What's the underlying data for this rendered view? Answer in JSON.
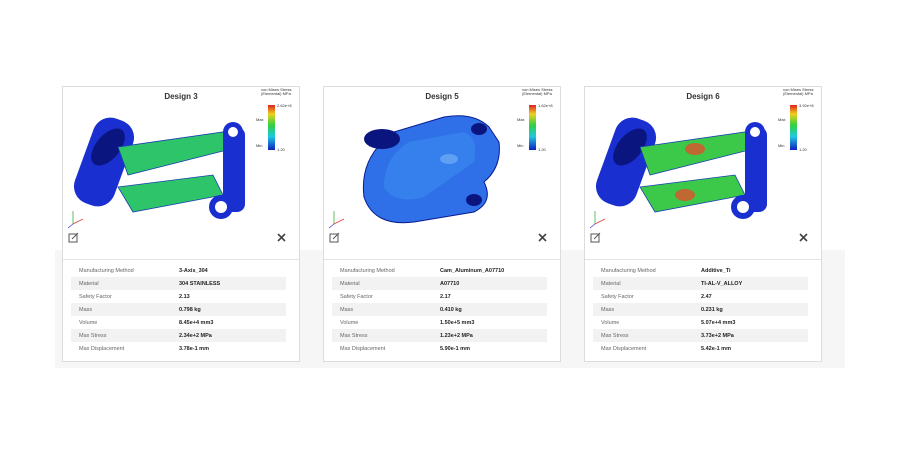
{
  "cards": [
    {
      "title": "Design 3",
      "legend": {
        "title": "von Mises Stress (Elemental) MPa",
        "max": "2.62e+8",
        "min": "1.20",
        "max_marker": "Max",
        "min_marker": "Min"
      },
      "rows": [
        [
          "Manufacturing Method",
          "3-Axis_304"
        ],
        [
          "Material",
          "304 STAINLESS"
        ],
        [
          "Safety Factor",
          "2.13"
        ],
        [
          "Mass",
          "0.798 kg"
        ],
        [
          "Volume",
          "8.45e+4 mm3"
        ],
        [
          "Max Stress",
          "2.34e+2 MPa"
        ],
        [
          "Max Displacement",
          "3.78e-1 mm"
        ]
      ]
    },
    {
      "title": "Design 5",
      "legend": {
        "title": "von Mises Stress (Elemental) MPa",
        "max": "1.62e+8",
        "min": "1.20",
        "max_marker": "Max",
        "min_marker": "Min"
      },
      "rows": [
        [
          "Manufacturing Method",
          "Cam_Aluminum_A07710"
        ],
        [
          "Material",
          "A07710"
        ],
        [
          "Safety Factor",
          "2.17"
        ],
        [
          "Mass",
          "0.410 kg"
        ],
        [
          "Volume",
          "1.50e+5 mm3"
        ],
        [
          "Max Stress",
          "1.23e+2 MPa"
        ],
        [
          "Max Displacement",
          "5.90e-1 mm"
        ]
      ]
    },
    {
      "title": "Design 6",
      "legend": {
        "title": "von Mises Stress (Elemental) MPa",
        "max": "3.92e+8",
        "min": "1.20",
        "max_marker": "Max",
        "min_marker": "Min"
      },
      "rows": [
        [
          "Manufacturing Method",
          "Additive_Ti"
        ],
        [
          "Material",
          "TI-AL-V_ALLOY"
        ],
        [
          "Safety Factor",
          "2.47"
        ],
        [
          "Mass",
          "0.231 kg"
        ],
        [
          "Volume",
          "5.07e+4 mm3"
        ],
        [
          "Max Stress",
          "3.73e+2 MPa"
        ],
        [
          "Max Displacement",
          "5.42e-1 mm"
        ]
      ]
    }
  ]
}
